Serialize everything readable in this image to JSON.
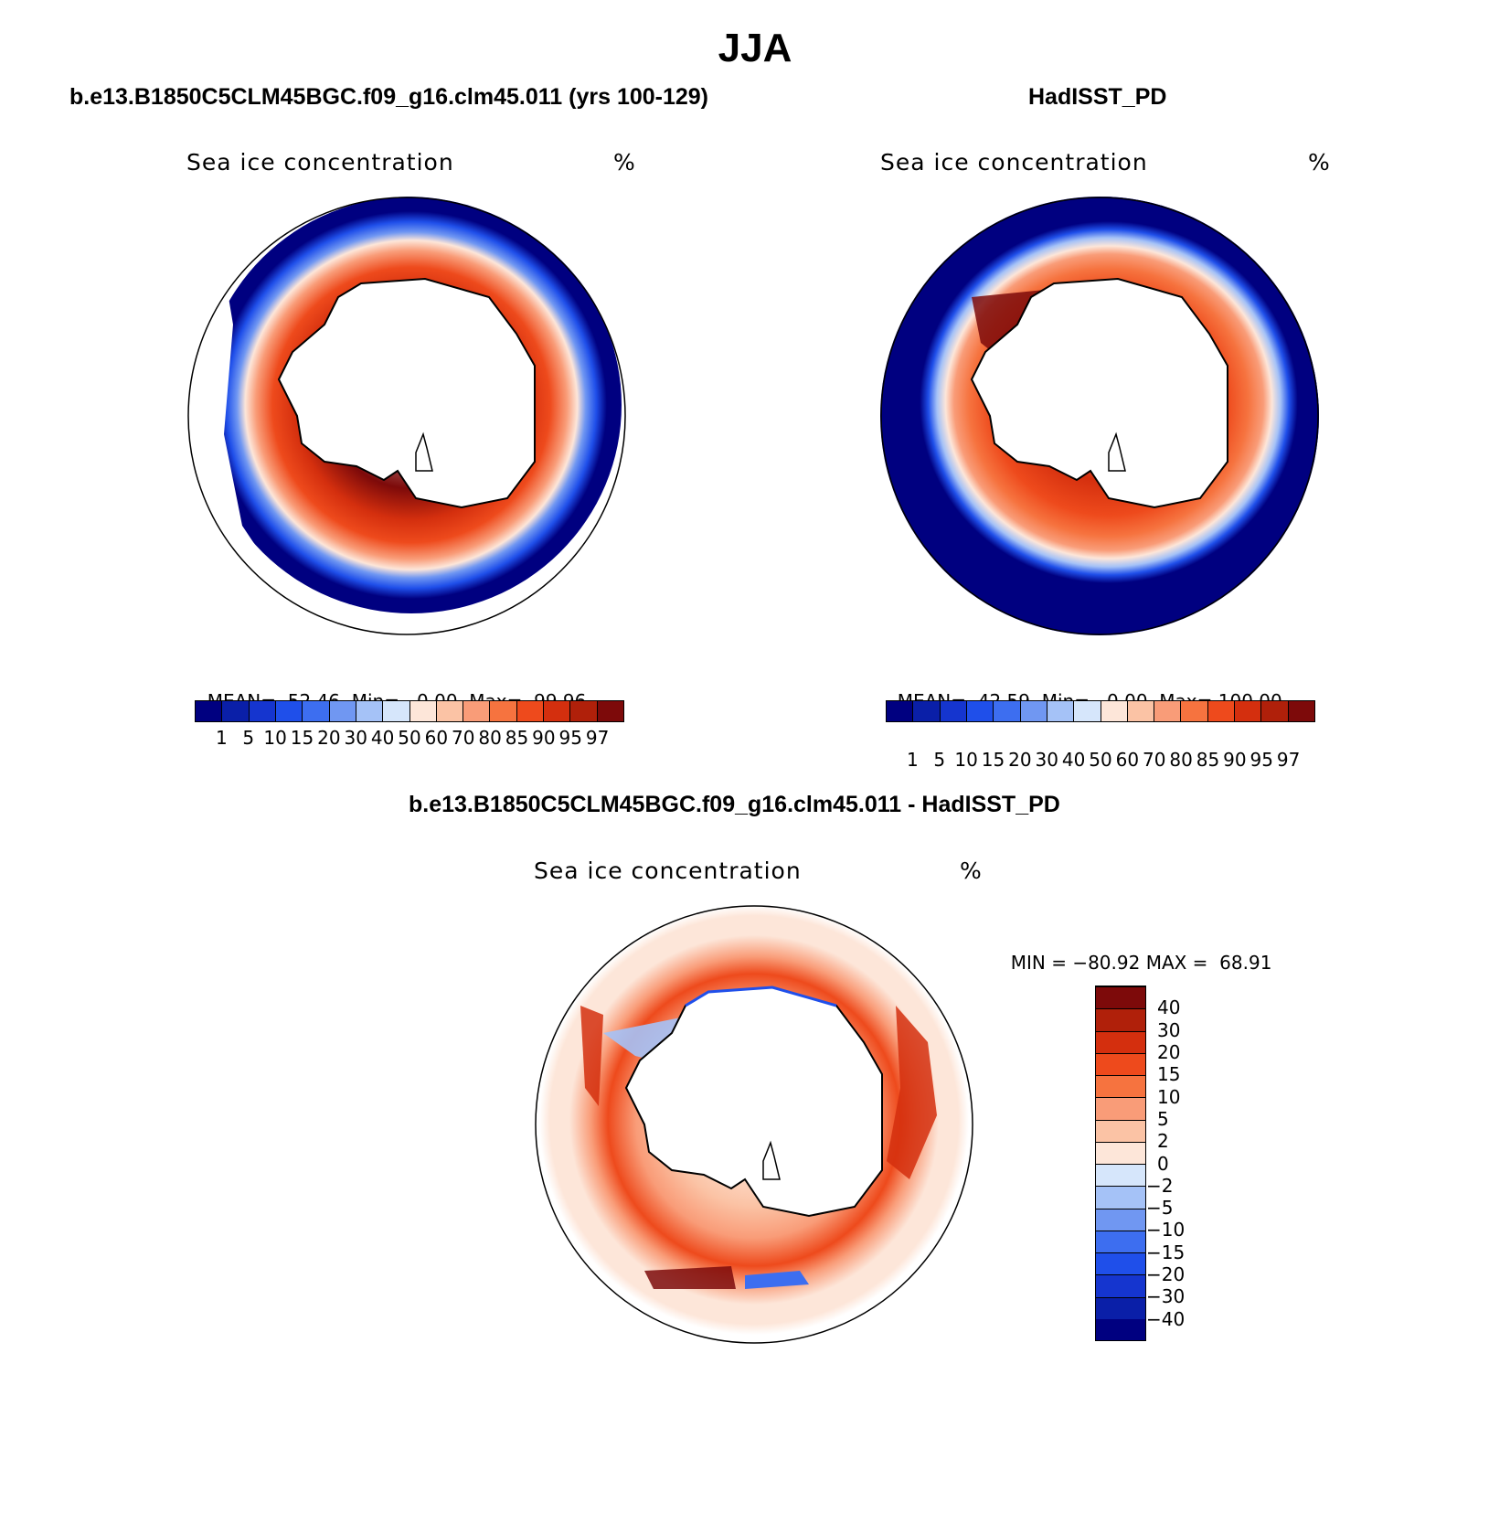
{
  "figure": {
    "title": "JJA"
  },
  "panels": {
    "model": {
      "title": "b.e13.B1850C5CLM45BGC.f09_g16.clm45.011 (yrs 100-129)",
      "variable": "Sea ice concentration",
      "units": "%",
      "stats": {
        "mean_label": "MEAN=",
        "mean": "52.46",
        "min_label": "Min=",
        "min": "0.00",
        "max_label": "Max=",
        "max": "99.96"
      }
    },
    "obs": {
      "title": "HadISST_PD",
      "variable": "Sea ice concentration",
      "units": "%",
      "stats": {
        "mean_label": "MEAN=",
        "mean": "42.59",
        "min_label": "Min=",
        "min": "0.00",
        "max_label": "Max=",
        "max": "100.00"
      }
    },
    "diff": {
      "title": "b.e13.B1850C5CLM45BGC.f09_g16.clm45.011 - HadISST_PD",
      "variable": "Sea ice concentration",
      "units": "%",
      "stats": {
        "min_label": "MIN =",
        "min": "−80.92",
        "max_label": "MAX =",
        "max": "68.91"
      }
    }
  },
  "colorbars": {
    "main": {
      "ticks": [
        "1",
        "5",
        "10",
        "15",
        "20",
        "30",
        "40",
        "50",
        "60",
        "70",
        "80",
        "85",
        "90",
        "95",
        "97"
      ],
      "colors": [
        "#000080",
        "#0a1fa8",
        "#1535cf",
        "#1f4fea",
        "#3d6ef0",
        "#7097f2",
        "#a5c2f7",
        "#d6e6fb",
        "#fde6d9",
        "#fbc3a5",
        "#f99c78",
        "#f6733f",
        "#ee4a1c",
        "#d42f0e",
        "#b0200a",
        "#7d0a0a"
      ]
    },
    "diff": {
      "ticks": [
        "40",
        "30",
        "20",
        "15",
        "10",
        "5",
        "2",
        "0",
        "−2",
        "−5",
        "−10",
        "−15",
        "−20",
        "−30",
        "−40"
      ],
      "colors_bottom_to_top": [
        "#000080",
        "#0a1fa8",
        "#1535cf",
        "#1f4fea",
        "#3d6ef0",
        "#7097f2",
        "#a5c2f7",
        "#d6e6fb",
        "#fde6d9",
        "#fbc3a5",
        "#f99c78",
        "#f6733f",
        "#ee4a1c",
        "#d42f0e",
        "#b0200a",
        "#7d0a0a"
      ]
    }
  }
}
